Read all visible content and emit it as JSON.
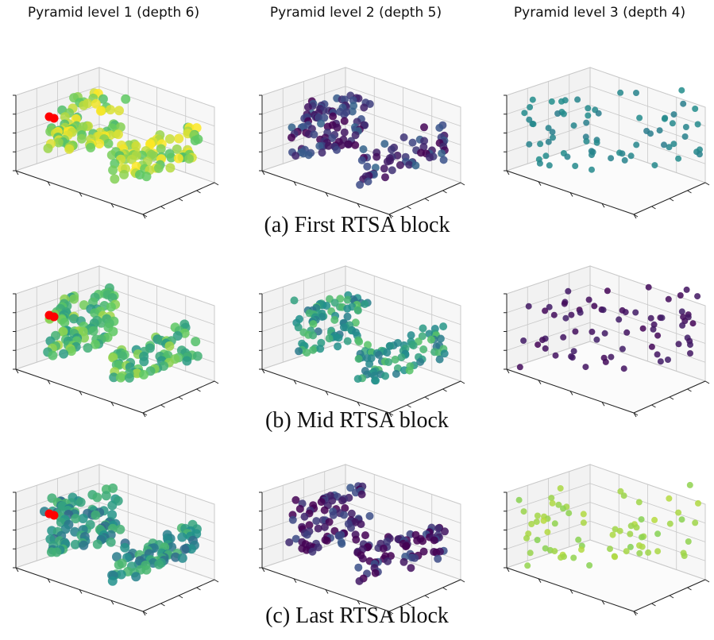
{
  "column_titles": [
    "Pyramid level 1 (depth 6)",
    "Pyramid level 2 (depth 5)",
    "Pyramid level 3 (depth 4)"
  ],
  "row_captions": [
    "(a) First RTSA block",
    "(b) Mid RTSA block",
    "(c) Last RTSA block"
  ],
  "colors": {
    "highlight": "#ff0000",
    "grid": "#c8c8c8",
    "pane": "#f2f2f2",
    "viridis": [
      "#440154",
      "#3b528b",
      "#21918c",
      "#5ec962",
      "#fde725"
    ]
  }
}
